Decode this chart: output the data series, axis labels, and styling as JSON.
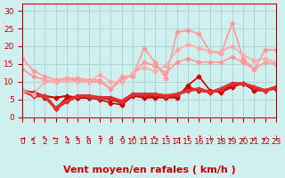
{
  "background_color": "#d0f0f0",
  "grid_color": "#b0d8d8",
  "xlabel": "Vent moyen/en rafales ( km/h )",
  "xlabel_color": "#cc0000",
  "xlabel_fontsize": 8,
  "tick_color": "#cc0000",
  "tick_fontsize": 6.5,
  "ylim": [
    0,
    32
  ],
  "xlim": [
    0,
    23
  ],
  "yticks": [
    0,
    5,
    10,
    15,
    20,
    25,
    30
  ],
  "xticks": [
    0,
    1,
    2,
    3,
    4,
    5,
    6,
    7,
    8,
    9,
    10,
    11,
    12,
    13,
    14,
    15,
    16,
    17,
    18,
    19,
    20,
    21,
    22,
    23
  ],
  "series": [
    {
      "x": [
        0,
        1,
        2,
        3,
        4,
        5,
        6,
        7,
        8,
        9,
        10,
        11,
        12,
        13,
        14,
        15,
        16,
        17,
        18,
        19,
        20,
        21,
        22,
        23
      ],
      "y": [
        7.5,
        7.0,
        6.0,
        5.5,
        6.0,
        5.5,
        5.5,
        5.5,
        5.0,
        4.0,
        6.5,
        6.0,
        6.0,
        6.0,
        6.0,
        8.5,
        7.5,
        7.0,
        7.5,
        9.0,
        9.5,
        8.0,
        7.5,
        8.5
      ],
      "color": "#cc0000",
      "linewidth": 1.5,
      "marker": "D",
      "markersize": 2.5,
      "alpha": 1.0
    },
    {
      "x": [
        0,
        1,
        2,
        3,
        4,
        5,
        6,
        7,
        8,
        9,
        10,
        11,
        12,
        13,
        14,
        15,
        16,
        17,
        18,
        19,
        20,
        21,
        22,
        23
      ],
      "y": [
        7.5,
        6.5,
        5.5,
        2.5,
        5.5,
        5.5,
        5.5,
        5.0,
        4.0,
        3.5,
        6.0,
        5.5,
        5.5,
        5.5,
        5.5,
        9.0,
        11.5,
        7.5,
        7.0,
        8.5,
        9.5,
        7.5,
        7.5,
        8.0
      ],
      "color": "#cc0000",
      "linewidth": 1.2,
      "marker": "D",
      "markersize": 2.5,
      "alpha": 1.0
    },
    {
      "x": [
        0,
        1,
        2,
        3,
        4,
        5,
        6,
        7,
        8,
        9,
        10,
        11,
        12,
        13,
        14,
        15,
        16,
        17,
        18,
        19,
        20,
        21,
        22,
        23
      ],
      "y": [
        7.5,
        6.0,
        6.0,
        2.5,
        4.5,
        6.0,
        6.0,
        5.5,
        5.5,
        4.5,
        6.5,
        6.5,
        6.5,
        6.0,
        6.5,
        7.5,
        8.0,
        7.0,
        8.0,
        9.5,
        9.5,
        8.5,
        7.5,
        8.5
      ],
      "color": "#dd3333",
      "linewidth": 2.5,
      "marker": "D",
      "markersize": 2.5,
      "alpha": 1.0
    },
    {
      "x": [
        0,
        1,
        2,
        3,
        4,
        5,
        6,
        7,
        8,
        9,
        10,
        11,
        12,
        13,
        14,
        15,
        16,
        17,
        18,
        19,
        20,
        21,
        22,
        23
      ],
      "y": [
        16.5,
        13.0,
        11.5,
        10.5,
        11.0,
        11.0,
        10.5,
        10.5,
        8.0,
        11.5,
        11.5,
        19.5,
        15.5,
        11.0,
        24.0,
        24.5,
        23.5,
        18.5,
        18.0,
        26.5,
        16.5,
        13.5,
        19.0,
        19.0
      ],
      "color": "#ff9999",
      "linewidth": 1.2,
      "marker": "D",
      "markersize": 2.5,
      "alpha": 1.0
    },
    {
      "x": [
        0,
        1,
        2,
        3,
        4,
        5,
        6,
        7,
        8,
        9,
        10,
        11,
        12,
        13,
        14,
        15,
        16,
        17,
        18,
        19,
        20,
        21,
        22,
        23
      ],
      "y": [
        13.5,
        11.5,
        10.5,
        10.0,
        10.5,
        10.5,
        10.0,
        10.0,
        8.0,
        10.5,
        12.0,
        15.5,
        14.5,
        12.5,
        15.5,
        16.5,
        15.5,
        15.5,
        15.5,
        17.0,
        15.5,
        13.5,
        15.5,
        15.0
      ],
      "color": "#ff9999",
      "linewidth": 1.2,
      "marker": "D",
      "markersize": 2.5,
      "alpha": 1.0
    },
    {
      "x": [
        0,
        1,
        2,
        3,
        4,
        5,
        6,
        7,
        8,
        9,
        10,
        11,
        12,
        13,
        14,
        15,
        16,
        17,
        18,
        19,
        20,
        21,
        22,
        23
      ],
      "y": [
        7.5,
        6.5,
        10.0,
        10.0,
        10.5,
        10.0,
        10.0,
        12.0,
        10.0,
        10.0,
        12.5,
        14.0,
        13.0,
        14.5,
        19.0,
        20.5,
        19.5,
        18.5,
        18.5,
        20.0,
        17.5,
        16.0,
        16.5,
        15.5
      ],
      "color": "#ffaaaa",
      "linewidth": 1.2,
      "marker": "D",
      "markersize": 2.5,
      "alpha": 1.0
    }
  ],
  "wind_arrows": [
    "→",
    "↙",
    "↖",
    "←",
    "↖",
    "↖",
    "↖",
    "↑",
    "↗",
    "↗",
    "↗",
    "↗",
    "↖",
    "↑",
    "→",
    "↑",
    "↑",
    "↓",
    "↓",
    "↙",
    "↙",
    "↙",
    "↙",
    "↓"
  ],
  "arrow_color": "#cc0000",
  "arrow_fontsize": 6
}
